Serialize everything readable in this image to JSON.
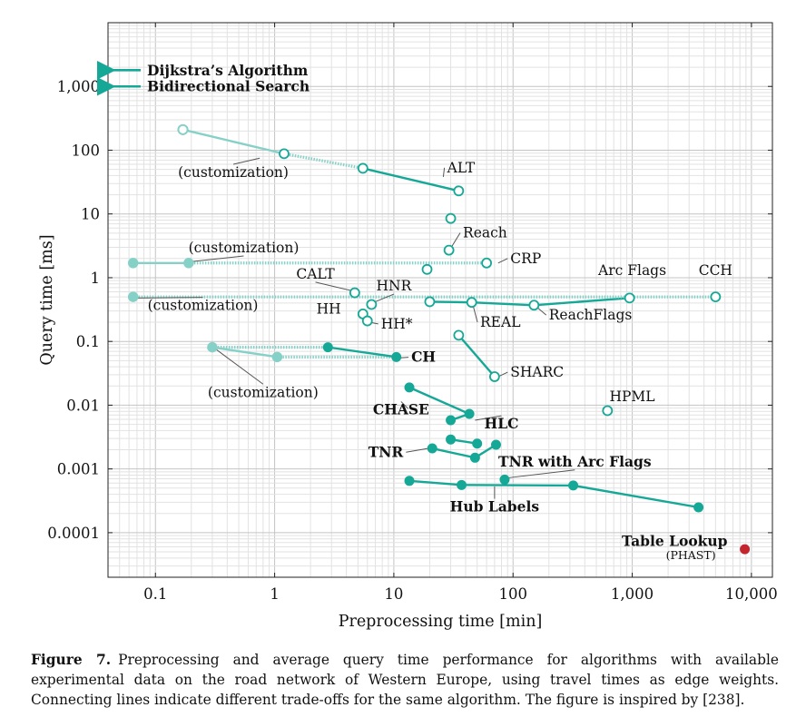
{
  "chart_data": {
    "type": "scatter",
    "title": "",
    "xlabel": "Preprocessing time [min]",
    "ylabel": "Query time [ms]",
    "x_scale": "log",
    "y_scale": "log",
    "xlim": [
      0.04,
      15000
    ],
    "ylim": [
      2e-05,
      10000
    ],
    "grid": true,
    "x_ticks": [
      {
        "value": 0.1,
        "label": "0.1"
      },
      {
        "value": 1,
        "label": "1"
      },
      {
        "value": 10,
        "label": "10"
      },
      {
        "value": 100,
        "label": "100"
      },
      {
        "value": 1000,
        "label": "1,000"
      },
      {
        "value": 10000,
        "label": "10,000"
      }
    ],
    "y_ticks": [
      {
        "value": 0.0001,
        "label": "0.0001"
      },
      {
        "value": 0.001,
        "label": "0.001"
      },
      {
        "value": 0.01,
        "label": "0.01"
      },
      {
        "value": 0.1,
        "label": "0.1"
      },
      {
        "value": 1,
        "label": "1"
      },
      {
        "value": 10,
        "label": "10"
      },
      {
        "value": 100,
        "label": "100"
      },
      {
        "value": 1000,
        "label": "1,000"
      }
    ],
    "colors": {
      "teal": "#16a897",
      "teal_light": "#86d1c7",
      "red": "#c4262e"
    },
    "arrows": [
      {
        "label": "Dijkstra’s Algorithm",
        "y": 1800
      },
      {
        "label": "Bidirectional Search",
        "y": 1000
      }
    ],
    "series": [
      {
        "name": "ALT",
        "marker": "open",
        "points": [
          [
            0.17,
            210
          ],
          [
            1.2,
            88
          ],
          [
            5.5,
            52
          ],
          [
            35,
            23
          ],
          [
            30,
            8.5
          ]
        ],
        "segments": [
          {
            "from": [
              0.17,
              210
            ],
            "to": [
              1.2,
              88
            ],
            "style": "light"
          },
          {
            "from": [
              1.2,
              88
            ],
            "to": [
              5.5,
              52
            ],
            "style": "dotted"
          },
          {
            "from": [
              5.5,
              52
            ],
            "to": [
              35,
              23
            ],
            "style": "solid"
          }
        ]
      },
      {
        "name": "CRP",
        "marker": "open",
        "points": [
          [
            60,
            1.7
          ]
        ],
        "light_points": [
          [
            0.065,
            1.7
          ],
          [
            0.19,
            1.7
          ]
        ],
        "segments": [
          {
            "from": [
              0.065,
              1.7
            ],
            "to": [
              0.19,
              1.7
            ],
            "style": "light"
          },
          {
            "from": [
              0.19,
              1.7
            ],
            "to": [
              60,
              1.7
            ],
            "style": "dotted"
          }
        ]
      },
      {
        "name": "Reach",
        "marker": "open",
        "points": [
          [
            29,
            2.7
          ],
          [
            19,
            1.35
          ]
        ],
        "segments": []
      },
      {
        "name": "CALT",
        "marker": "open",
        "points": [
          [
            4.7,
            0.58
          ]
        ],
        "segments": []
      },
      {
        "name": "HNR",
        "marker": "open",
        "points": [
          [
            6.5,
            0.38
          ]
        ],
        "segments": []
      },
      {
        "name": "HH",
        "marker": "open",
        "points": [
          [
            5.5,
            0.27
          ]
        ],
        "segments": []
      },
      {
        "name": "HH*",
        "marker": "open",
        "points": [
          [
            6.0,
            0.21
          ]
        ],
        "segments": []
      },
      {
        "name": "REAL",
        "marker": "open",
        "points": [
          [
            20,
            0.42
          ],
          [
            45,
            0.41
          ]
        ],
        "segments": [
          {
            "from": [
              20,
              0.42
            ],
            "to": [
              45,
              0.41
            ],
            "style": "solid"
          }
        ]
      },
      {
        "name": "ReachFlags",
        "marker": "open",
        "points": [
          [
            150,
            0.37
          ]
        ],
        "segments": [
          {
            "from": [
              45,
              0.41
            ],
            "to": [
              150,
              0.37
            ],
            "style": "solid"
          }
        ]
      },
      {
        "name": "Arc Flags",
        "marker": "open",
        "points": [
          [
            950,
            0.48
          ]
        ],
        "segments": [
          {
            "from": [
              150,
              0.37
            ],
            "to": [
              950,
              0.48
            ],
            "style": "solid"
          }
        ]
      },
      {
        "name": "CCH",
        "marker": "open",
        "points": [
          [
            5000,
            0.5
          ]
        ],
        "light_points": [
          [
            0.065,
            0.5
          ]
        ],
        "segments": [
          {
            "from": [
              0.065,
              0.5
            ],
            "to": [
              5000,
              0.5
            ],
            "style": "dotted"
          }
        ]
      },
      {
        "name": "SHARC",
        "marker": "open",
        "points": [
          [
            35,
            0.125
          ],
          [
            70,
            0.028
          ]
        ],
        "segments": [
          {
            "from": [
              35,
              0.125
            ],
            "to": [
              70,
              0.028
            ],
            "style": "solid"
          }
        ]
      },
      {
        "name": "HPML",
        "marker": "open",
        "points": [
          [
            620,
            0.0082
          ]
        ],
        "segments": []
      },
      {
        "name": "CH",
        "marker": "filled",
        "points": [
          [
            2.8,
            0.081
          ],
          [
            10.5,
            0.057
          ]
        ],
        "light_points": [
          [
            0.3,
            0.081
          ],
          [
            1.05,
            0.057
          ]
        ],
        "segments": [
          {
            "from": [
              0.3,
              0.081
            ],
            "to": [
              2.8,
              0.081
            ],
            "style": "dotted"
          },
          {
            "from": [
              1.05,
              0.057
            ],
            "to": [
              10.5,
              0.057
            ],
            "style": "dotted"
          },
          {
            "from": [
              0.3,
              0.081
            ],
            "to": [
              1.05,
              0.057
            ],
            "style": "light"
          },
          {
            "from": [
              2.8,
              0.081
            ],
            "to": [
              10.5,
              0.057
            ],
            "style": "solid"
          }
        ]
      },
      {
        "name": "CHASE",
        "marker": "filled",
        "points": [
          [
            13.5,
            0.019
          ],
          [
            43,
            0.0073
          ],
          [
            30,
            0.0058
          ]
        ],
        "segments": [
          {
            "from": [
              13.5,
              0.019
            ],
            "to": [
              43,
              0.0073
            ],
            "style": "solid"
          },
          {
            "from": [
              30,
              0.0058
            ],
            "to": [
              43,
              0.0073
            ],
            "style": "solid"
          }
        ]
      },
      {
        "name": "HLC",
        "marker": "filled",
        "points": [
          [
            30,
            0.0029
          ],
          [
            50,
            0.0025
          ],
          [
            72,
            0.0024
          ]
        ],
        "segments": [
          {
            "from": [
              30,
              0.0029
            ],
            "to": [
              50,
              0.0025
            ],
            "style": "solid"
          }
        ]
      },
      {
        "name": "TNR",
        "marker": "filled",
        "points": [
          [
            21,
            0.0021
          ],
          [
            48,
            0.0015
          ]
        ],
        "segments": [
          {
            "from": [
              21,
              0.0021
            ],
            "to": [
              48,
              0.0015
            ],
            "style": "solid"
          },
          {
            "from": [
              48,
              0.0015
            ],
            "to": [
              72,
              0.0024
            ],
            "style": "solid"
          }
        ]
      },
      {
        "name": "TNR with Arc Flags",
        "marker": "filled",
        "points": [
          [
            85,
            0.00068
          ]
        ],
        "segments": []
      },
      {
        "name": "Hub Labels",
        "marker": "filled",
        "points": [
          [
            13.5,
            0.00065
          ],
          [
            37,
            0.00056
          ],
          [
            320,
            0.00055
          ],
          [
            3600,
            0.00025
          ]
        ],
        "segments": [
          {
            "from": [
              13.5,
              0.00065
            ],
            "to": [
              37,
              0.00056
            ],
            "style": "solid"
          },
          {
            "from": [
              37,
              0.00056
            ],
            "to": [
              320,
              0.00055
            ],
            "style": "solid"
          },
          {
            "from": [
              320,
              0.00055
            ],
            "to": [
              3600,
              0.00025
            ],
            "style": "solid"
          }
        ]
      },
      {
        "name": "Table Lookup",
        "marker": "filled_red",
        "points": [
          [
            8800,
            5.5e-05
          ]
        ],
        "segments": []
      }
    ],
    "annotations": [
      {
        "text": "ALT",
        "x": 28,
        "y": 45,
        "bold": false,
        "anchor": "start",
        "leader_to": [
          26,
          38
        ]
      },
      {
        "text": "(customization)",
        "x": 0.45,
        "y": 38,
        "bold": false,
        "anchor": "middle",
        "leader_to": [
          0.75,
          75
        ]
      },
      {
        "text": "(customization)",
        "x": 0.55,
        "y": 2.5,
        "bold": false,
        "anchor": "middle",
        "leader_to": [
          0.18,
          1.75
        ]
      },
      {
        "text": "Reach",
        "x": 38,
        "y": 4.3,
        "bold": false,
        "anchor": "start",
        "leader_to": [
          30,
          2.9
        ]
      },
      {
        "text": "CRP",
        "x": 95,
        "y": 1.7,
        "bold": false,
        "anchor": "start",
        "leader_to": [
          75,
          1.7
        ]
      },
      {
        "text": "Arc Flags",
        "x": 1000,
        "y": 1.1,
        "bold": false,
        "anchor": "middle"
      },
      {
        "text": "CCH",
        "x": 5000,
        "y": 1.1,
        "bold": false,
        "anchor": "middle"
      },
      {
        "text": "CALT",
        "x": 2.2,
        "y": 0.97,
        "bold": false,
        "anchor": "middle",
        "leader_to": [
          4.5,
          0.62
        ]
      },
      {
        "text": "HNR",
        "x": 10,
        "y": 0.63,
        "bold": false,
        "anchor": "middle",
        "leader_to": [
          7,
          0.42
        ]
      },
      {
        "text": "HH",
        "x": 3.6,
        "y": 0.275,
        "bold": false,
        "anchor": "end"
      },
      {
        "text": "HH*",
        "x": 7.8,
        "y": 0.16,
        "bold": false,
        "anchor": "start",
        "leader_to": [
          6.2,
          0.2
        ]
      },
      {
        "text": "(customization)",
        "x": 0.25,
        "y": 0.31,
        "bold": false,
        "anchor": "middle",
        "leader_to": [
          0.07,
          0.48
        ]
      },
      {
        "text": "REAL",
        "x": 53,
        "y": 0.17,
        "bold": false,
        "anchor": "start",
        "leader_to": [
          46,
          0.38
        ]
      },
      {
        "text": "ReachFlags",
        "x": 200,
        "y": 0.22,
        "bold": false,
        "anchor": "start",
        "leader_to": [
          160,
          0.34
        ]
      },
      {
        "text": "(customization)",
        "x": 0.8,
        "y": 0.0135,
        "bold": false,
        "anchor": "middle",
        "leader_to": [
          0.32,
          0.076
        ]
      },
      {
        "text": "CH",
        "x": 14,
        "y": 0.048,
        "bold": true,
        "anchor": "start",
        "leader_to": [
          11,
          0.055
        ]
      },
      {
        "text": "SHARC",
        "x": 95,
        "y": 0.028,
        "bold": false,
        "anchor": "start",
        "leader_to": [
          75,
          0.028
        ]
      },
      {
        "text": "CHASE",
        "x": 11.5,
        "y": 0.0072,
        "bold": true,
        "anchor": "middle",
        "leader_to": [
          13.2,
          0.0088
        ]
      },
      {
        "text": "HLC",
        "x": 80,
        "y": 0.0043,
        "bold": true,
        "anchor": "middle",
        "leader_to": [
          48,
          0.0058
        ]
      },
      {
        "text": "TNR",
        "x": 12,
        "y": 0.00155,
        "bold": true,
        "anchor": "end",
        "leader_to": [
          19.5,
          0.0021
        ]
      },
      {
        "text": "HPML",
        "x": 1000,
        "y": 0.0115,
        "bold": false,
        "anchor": "middle"
      },
      {
        "text": "TNR with Arc Flags",
        "x": 330,
        "y": 0.0011,
        "bold": true,
        "anchor": "middle",
        "leader_to": [
          88,
          0.00072
        ]
      },
      {
        "text": "Hub Labels",
        "x": 70,
        "y": 0.000215,
        "bold": true,
        "anchor": "middle",
        "leader_to": [
          70,
          0.00053
        ]
      },
      {
        "text": "Table Lookup",
        "x": 6300,
        "y": 6.2e-05,
        "bold": true,
        "anchor": "end"
      },
      {
        "text": "(PHAST)",
        "x": 3100,
        "y": 3.85e-05,
        "bold": false,
        "anchor": "middle",
        "small": true
      }
    ]
  },
  "caption": {
    "label": "Figure 7.",
    "text": "Preprocessing and average query time performance for algorithms with available experimental data on the road network of Western Europe, using travel times as edge weights. Connecting lines indicate different trade-offs for the same algorithm. The figure is inspired by [238]."
  }
}
